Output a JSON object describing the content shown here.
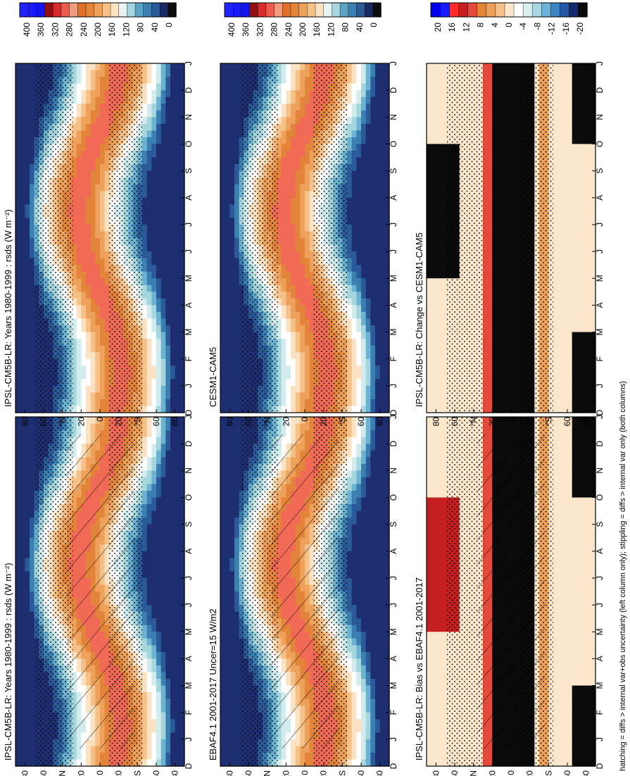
{
  "figure": {
    "footnote": "hatching = diffs > internal var+obs uncertainty (left column only); stippling = diffs > internal var only (both columns)",
    "month_ticks": [
      "D",
      "J",
      "F",
      "M",
      "A",
      "M",
      "J",
      "J",
      "A",
      "S",
      "O",
      "N",
      "D",
      "J"
    ],
    "lat_ticks": [
      "80",
      "60",
      "°N",
      "20",
      "0",
      "20",
      "°S",
      "60",
      "80"
    ]
  },
  "chart_data": [
    {
      "type": "heatmap",
      "id": "model_clim",
      "row": 0,
      "col": 0,
      "title": "IPSL-CM5B-LR: Years 1980-1999 : rsds (W m⁻²)",
      "field": "clim",
      "hatch": true,
      "stipple": true,
      "x": "month (Dec–Jan, cyclic)",
      "y": "latitude 90S–90N",
      "colorbar": {
        "ticks": [
          "400",
          "360",
          "320",
          "280",
          "240",
          "200",
          "160",
          "120",
          "80",
          "40",
          "0"
        ],
        "range": [
          0,
          420
        ]
      }
    },
    {
      "type": "heatmap",
      "id": "model_clim_ref",
      "row": 0,
      "col": 1,
      "title": "IPSL-CM5B-LR: Years 1980-1999 : rsds (W m⁻²)",
      "field": "clim",
      "hatch": false,
      "stipple": true,
      "colorbar": {
        "ticks": [
          "400",
          "360",
          "320",
          "280",
          "240",
          "200",
          "160",
          "120",
          "80",
          "40",
          "0"
        ],
        "range": [
          0,
          420
        ]
      }
    },
    {
      "type": "heatmap",
      "id": "obs",
      "row": 1,
      "col": 0,
      "title": "EBAF4.1 2001-2017 Uncer=15 W/m2",
      "field": "clim",
      "hatch": true,
      "stipple": true,
      "colorbar": {
        "ticks": [
          "400",
          "360",
          "320",
          "280",
          "240",
          "200",
          "160",
          "120",
          "80",
          "40",
          "0"
        ],
        "range": [
          0,
          420
        ]
      }
    },
    {
      "type": "heatmap",
      "id": "cesm",
      "row": 1,
      "col": 1,
      "title": "CESM1-CAM5",
      "field": "clim",
      "hatch": false,
      "stipple": true,
      "colorbar": {
        "ticks": [
          "400",
          "360",
          "320",
          "280",
          "240",
          "200",
          "160",
          "120",
          "80",
          "40",
          "0"
        ],
        "range": [
          0,
          420
        ]
      }
    },
    {
      "type": "heatmap",
      "id": "bias",
      "row": 2,
      "col": 0,
      "title": "IPSL-CM5B-LR: Bias vs EBAF4.1 2001-2017",
      "field": "diff",
      "hatch": true,
      "stipple": true,
      "colorbar": {
        "ticks": [
          "20",
          "16",
          "12",
          "8",
          "4",
          "0",
          "-4",
          "-8",
          "-12",
          "-16",
          "-20"
        ],
        "range": [
          -22,
          22
        ]
      }
    },
    {
      "type": "heatmap",
      "id": "change",
      "row": 2,
      "col": 1,
      "title": "IPSL-CM5B-LR: Change vs CESM1-CAM5",
      "field": "diff",
      "hatch": false,
      "stipple": true,
      "colorbar": {
        "ticks": [
          "20",
          "16",
          "12",
          "8",
          "4",
          "0",
          "-4",
          "-8",
          "-12",
          "-16",
          "-20"
        ],
        "range": [
          -22,
          22
        ]
      }
    }
  ],
  "palette": {
    "clim": [
      "#ffffff",
      "#e6f3f2",
      "#c9e7e8",
      "#a6d6dd",
      "#7fbfd3",
      "#5aa3c3",
      "#3b80b0",
      "#2a5a98",
      "#1f3b7e",
      "#1a2a66",
      "#0d0d0d"
    ],
    "clim_mid": [
      "#fbe2c2",
      "#f6c188",
      "#eda15a",
      "#e2853a",
      "#df7030",
      "#f09a7e",
      "#ec5c4e",
      "#d72c2c",
      "#b51d1d",
      "#8e1010"
    ],
    "diff": [
      "#000000",
      "#152a6b",
      "#2456a6",
      "#3d85c1",
      "#6bb1d8",
      "#a9d6e5",
      "#dcefef",
      "#ffffff",
      "#fde7cc",
      "#f6c188",
      "#eda15a",
      "#e2853a",
      "#e24b3b",
      "#c41e1e",
      "#ff2a2a",
      "#1a1aff",
      "#0000ee"
    ]
  }
}
